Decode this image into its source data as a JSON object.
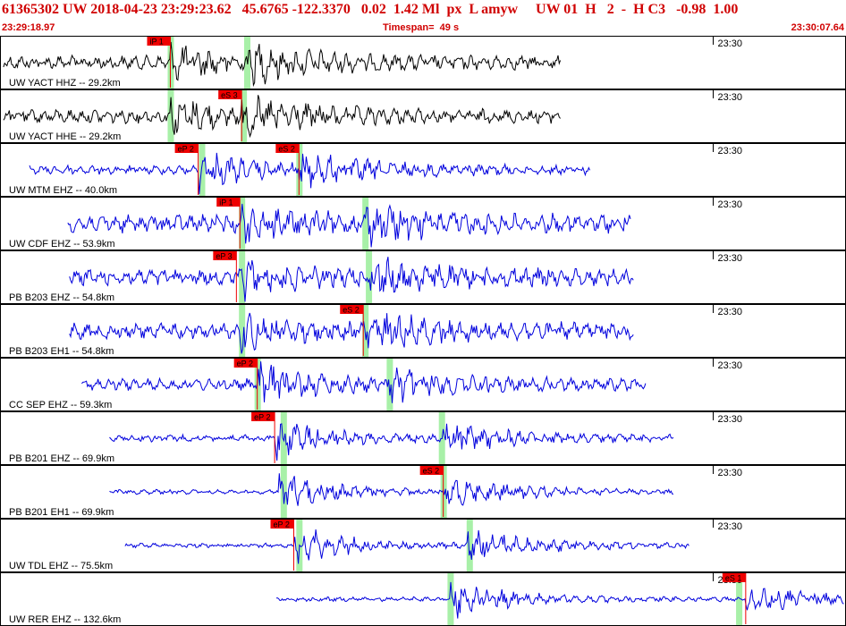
{
  "header": {
    "title": "61365302 UW 2018-04-23 23:29:23.62   45.6765 -122.3370   0.02  1.42 Ml  px  L amyw     UW 01  H   2  -  H C3   -0.98  1.00",
    "start_time": "23:29:18.97",
    "timespan_label": "Timespan=  49 s",
    "end_time": "23:30:07.64"
  },
  "time_axis": {
    "start_s": 0,
    "end_s": 48.67,
    "tick_label": "23:30",
    "tick_s": 41.03
  },
  "colors": {
    "header_text": "#d00000",
    "trace_main": "#000000",
    "trace_other": "#0000dd",
    "pick_flag": "#ee0000",
    "pick_window": "#a8f0a8"
  },
  "channels": [
    {
      "label": "UW YACT HHZ -- 29.2km",
      "color": "black",
      "trace": [
        0.2,
        32.3
      ],
      "amp": 6,
      "p": 9.8,
      "s": 14.2,
      "picks": [
        {
          "label": "iP 1",
          "t": 9.8
        }
      ],
      "windows": [
        9.8,
        14.2
      ]
    },
    {
      "label": "UW YACT HHE -- 29.2km",
      "color": "black",
      "trace": [
        0.2,
        32.3
      ],
      "amp": 6,
      "p": 9.8,
      "s": 13.9,
      "picks": [
        {
          "label": "eS 3",
          "t": 13.9
        }
      ],
      "windows": [
        9.8,
        14.0
      ]
    },
    {
      "label": "UW MTM EHZ -- 40.0km",
      "color": "blue",
      "trace": [
        1.7,
        34.0
      ],
      "amp": 4,
      "p": 11.4,
      "s": 17.2,
      "picks": [
        {
          "label": "eP 2",
          "t": 11.4
        },
        {
          "label": "eS 2",
          "t": 17.2
        }
      ],
      "windows": [
        11.6,
        17.2
      ]
    },
    {
      "label": "UW CDF EHZ -- 53.9km",
      "color": "blue",
      "trace": [
        3.9,
        36.3
      ],
      "amp": 8,
      "p": 13.8,
      "s": 20.9,
      "picks": [
        {
          "label": "iP 1",
          "t": 13.8
        }
      ],
      "windows": [
        13.9,
        21.0
      ]
    },
    {
      "label": "PB B203 EHZ -- 54.8km",
      "color": "blue",
      "trace": [
        4.0,
        36.5
      ],
      "amp": 7,
      "p": 13.8,
      "s": 21.3,
      "picks": [
        {
          "label": "eP 3",
          "t": 13.6
        }
      ],
      "windows": [
        13.9,
        21.2
      ]
    },
    {
      "label": "PB B203 EH1 -- 54.8km",
      "color": "blue",
      "trace": [
        4.0,
        36.5
      ],
      "amp": 7,
      "p": 13.8,
      "s": 20.9,
      "picks": [
        {
          "label": "eS 2",
          "t": 20.9
        }
      ],
      "windows": [
        13.9,
        21.0
      ]
    },
    {
      "label": "CC SEP EHZ -- 59.3km",
      "color": "blue",
      "trace": [
        4.7,
        37.2
      ],
      "amp": 5,
      "p": 14.8,
      "s": 22.3,
      "picks": [
        {
          "label": "eP 2",
          "t": 14.8
        }
      ],
      "windows": [
        14.8,
        22.4
      ]
    },
    {
      "label": "PB B201 EHZ -- 69.9km",
      "color": "blue",
      "trace": [
        6.3,
        38.8
      ],
      "amp": 3,
      "p": 15.8,
      "s": 25.4,
      "picks": [
        {
          "label": "eP 2",
          "t": 15.8
        }
      ],
      "windows": [
        16.3,
        25.4
      ]
    },
    {
      "label": "PB B201 EH1 -- 69.9km",
      "color": "blue",
      "trace": [
        6.3,
        38.8
      ],
      "amp": 2,
      "p": 16.0,
      "s": 25.5,
      "picks": [
        {
          "label": "eS 2",
          "t": 25.5
        }
      ],
      "windows": [
        16.3,
        25.5
      ]
    },
    {
      "label": "UW TDL EHZ -- 75.5km",
      "color": "blue",
      "trace": [
        7.2,
        39.7
      ],
      "amp": 2,
      "p": 16.9,
      "s": 26.9,
      "picks": [
        {
          "label": "eP 2",
          "t": 16.9
        }
      ],
      "windows": [
        17.2,
        27.0
      ]
    },
    {
      "label": "UW RER EHZ -- 132.6km",
      "color": "blue",
      "trace": [
        15.9,
        48.67
      ],
      "amp": 2,
      "p": 25.9,
      "s": 42.9,
      "picks": [
        {
          "label": "eS 1",
          "t": 42.9
        }
      ],
      "windows": [
        25.9,
        42.5
      ]
    }
  ]
}
